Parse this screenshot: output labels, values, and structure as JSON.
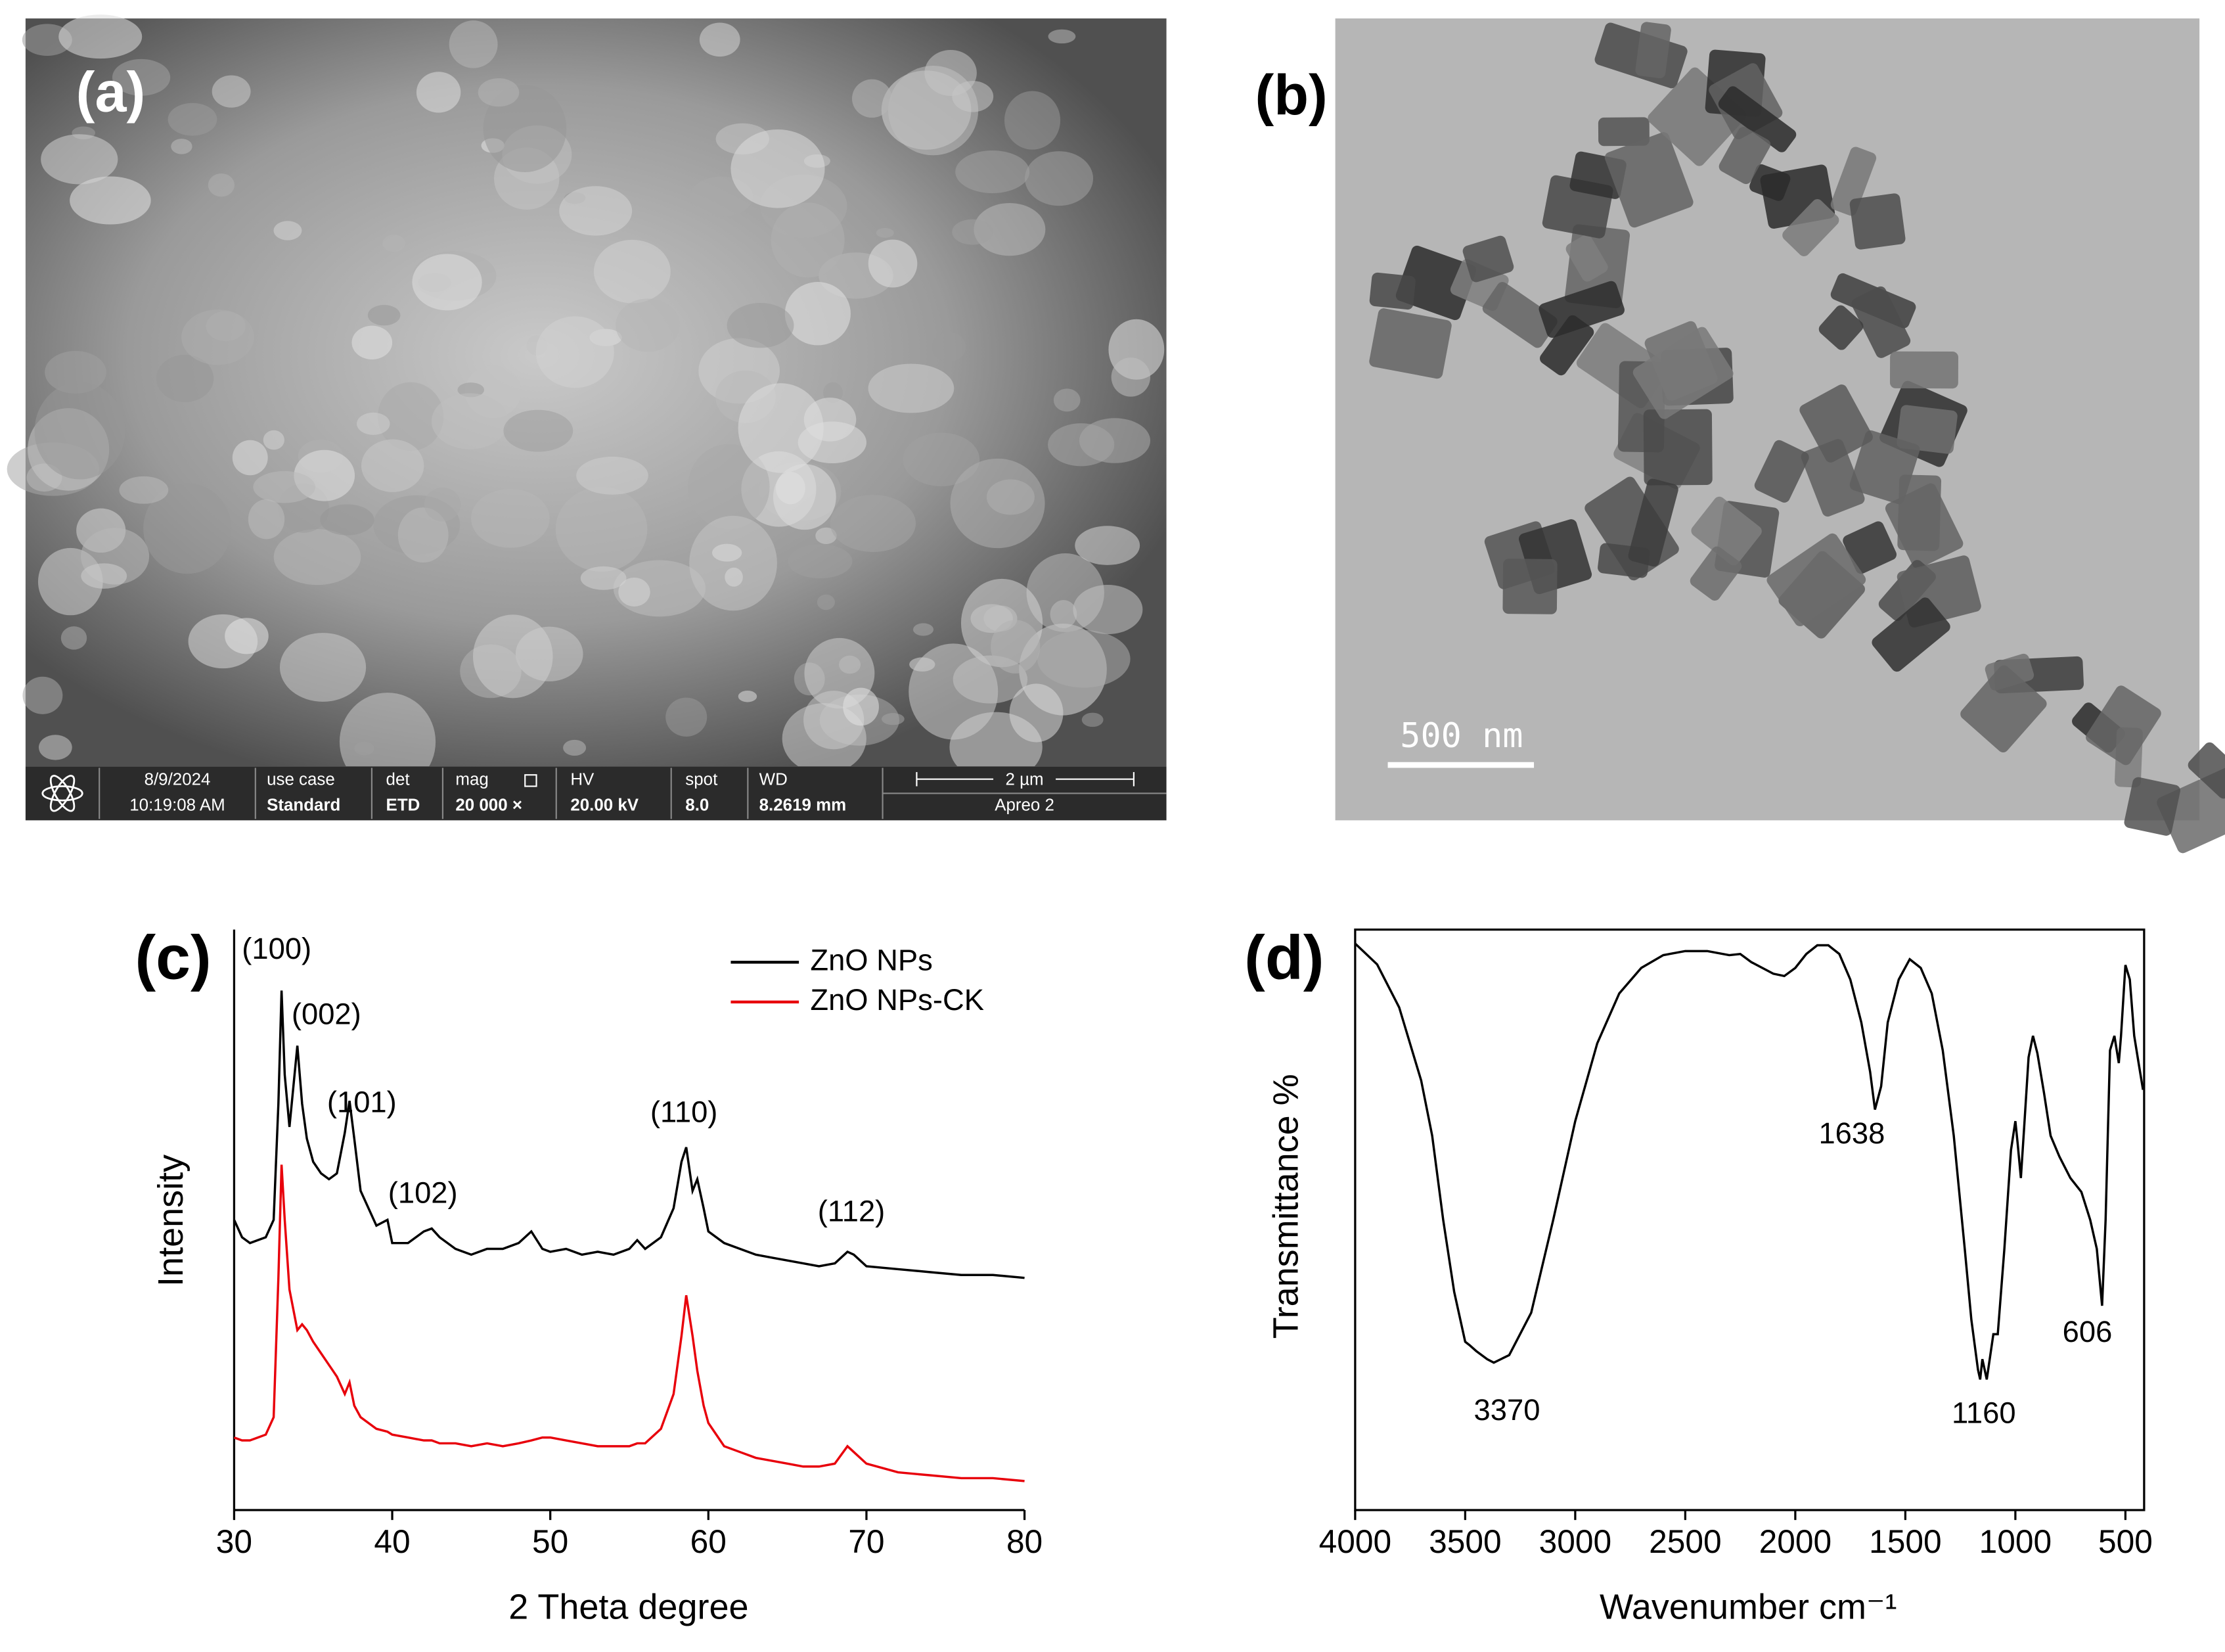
{
  "sem": {
    "label": "(a)",
    "info_bar": {
      "date": "8/9/2024",
      "time": "10:19:08 AM",
      "use_case_label": "use case",
      "use_case": "Standard",
      "det_label": "det",
      "det": "ETD",
      "mag_label": "mag",
      "mag": "20 000 ×",
      "hv_label": "HV",
      "hv": "20.00 kV",
      "spot_label": "spot",
      "spot": "8.0",
      "wd_label": "WD",
      "wd": "8.2619 mm",
      "scale": "2 µm",
      "instrument": "Apreo 2"
    }
  },
  "tem": {
    "label": "(b)",
    "scale": "500 nm"
  },
  "chart_data": [
    {
      "type": "line",
      "panel_label": "(c)",
      "x_label": "2 Theta degree",
      "y_label": "Intensity",
      "xlim": [
        30,
        80
      ],
      "xticks": [
        30,
        40,
        50,
        60,
        70,
        80
      ],
      "ylim": [
        0,
        100
      ],
      "legend": "top-right",
      "annotations": [
        "(100)",
        "(002)",
        "(101)",
        "(102)",
        "(110)",
        "(112)"
      ],
      "x": [
        30,
        30.5,
        31,
        31.5,
        32,
        32.5,
        32.8,
        33,
        33.2,
        33.5,
        34,
        34.3,
        34.6,
        35,
        35.5,
        36,
        36.5,
        37,
        37.3,
        37.6,
        38,
        39,
        39.7,
        40,
        41,
        42,
        42.5,
        43,
        44,
        45,
        46,
        47,
        48,
        48.8,
        49.5,
        50,
        51,
        52,
        53,
        54,
        55,
        55.5,
        56,
        57,
        57.8,
        58.3,
        58.6,
        59,
        59.3,
        59.7,
        60,
        61,
        62,
        63,
        64,
        65,
        66,
        67,
        68,
        68.8,
        69.2,
        70,
        72,
        74,
        76,
        78,
        80
      ],
      "series": [
        {
          "name": "ZnO NPs",
          "color": "#000000",
          "values": [
            50,
            47,
            46,
            46.5,
            47,
            50,
            70,
            89.5,
            75,
            66,
            80,
            70,
            64,
            60,
            58,
            57,
            58,
            65,
            70.5,
            64,
            55,
            49,
            50,
            46,
            46,
            48,
            48.5,
            47,
            45,
            44,
            45,
            45,
            46,
            48,
            45,
            44.5,
            45,
            44,
            44.5,
            44,
            45,
            46.5,
            45,
            47,
            52,
            60,
            62.5,
            55,
            57,
            52,
            48,
            46,
            45,
            44,
            43.5,
            43,
            42.5,
            42,
            42.5,
            44.5,
            44,
            42,
            41.5,
            41,
            40.5,
            40.5,
            40
          ]
        },
        {
          "name": "ZnO NPs-CK",
          "color": "#e8000b",
          "values": [
            12.5,
            12,
            12,
            12.5,
            13,
            16,
            40,
            59.5,
            50,
            38,
            31,
            32,
            31,
            29,
            27,
            25,
            23,
            20,
            22,
            18,
            16,
            14,
            13.5,
            13,
            12.5,
            12,
            12,
            11.5,
            11.5,
            11,
            11.5,
            11,
            11.5,
            12,
            12.5,
            12.5,
            12,
            11.5,
            11,
            11,
            11,
            11.5,
            11.5,
            14,
            20,
            30,
            37,
            30,
            24,
            18,
            15,
            11,
            10,
            9,
            8.5,
            8,
            7.5,
            7.5,
            8,
            11,
            10,
            8,
            6.5,
            6,
            5.5,
            5.5,
            5
          ]
        }
      ]
    },
    {
      "type": "line",
      "panel_label": "(d)",
      "x_label": "Wavenumber cm⁻¹",
      "y_label": "Transmittance %",
      "xlim": [
        4000,
        415
      ],
      "xticks": [
        4000,
        3500,
        3000,
        2500,
        2000,
        1500,
        1000,
        500
      ],
      "ylim": [
        0,
        100
      ],
      "color": "#000000",
      "annotations": [
        "3370",
        "1638",
        "1160",
        "606"
      ],
      "x": [
        4000,
        3900,
        3800,
        3700,
        3650,
        3600,
        3550,
        3500,
        3480,
        3450,
        3400,
        3370,
        3300,
        3200,
        3100,
        3000,
        2900,
        2800,
        2700,
        2600,
        2500,
        2400,
        2300,
        2250,
        2200,
        2100,
        2050,
        2000,
        1950,
        1900,
        1850,
        1800,
        1750,
        1700,
        1660,
        1638,
        1610,
        1580,
        1530,
        1480,
        1430,
        1380,
        1330,
        1280,
        1230,
        1200,
        1170,
        1160,
        1150,
        1130,
        1100,
        1080,
        1050,
        1020,
        1000,
        990,
        975,
        960,
        940,
        920,
        900,
        870,
        840,
        800,
        750,
        700,
        660,
        630,
        606,
        590,
        570,
        550,
        530,
        520,
        500,
        480,
        460,
        440,
        420
      ],
      "values": [
        97.6,
        94,
        86.6,
        74,
        64.5,
        50,
        37.6,
        29,
        28.4,
        27.4,
        26,
        25.4,
        26.7,
        34,
        50,
        67,
        80.4,
        89,
        93.4,
        95.6,
        96.3,
        96.3,
        95.6,
        95.8,
        94.4,
        92.4,
        92,
        93.4,
        95.8,
        97.3,
        97.3,
        95.8,
        91.4,
        84,
        75.5,
        69,
        73,
        84,
        91.4,
        94.9,
        93.4,
        89,
        79.2,
        64.5,
        45,
        32.8,
        24.2,
        22.5,
        26,
        22.5,
        30.3,
        30.3,
        45,
        62,
        67,
        63.3,
        57.2,
        66,
        78,
        81.7,
        78.7,
        71.9,
        64.5,
        60.9,
        57.2,
        54.8,
        50,
        45,
        35.2,
        50,
        79.2,
        81.7,
        77,
        81.7,
        93.9,
        91.4,
        81.7,
        77,
        72.4
      ]
    }
  ]
}
